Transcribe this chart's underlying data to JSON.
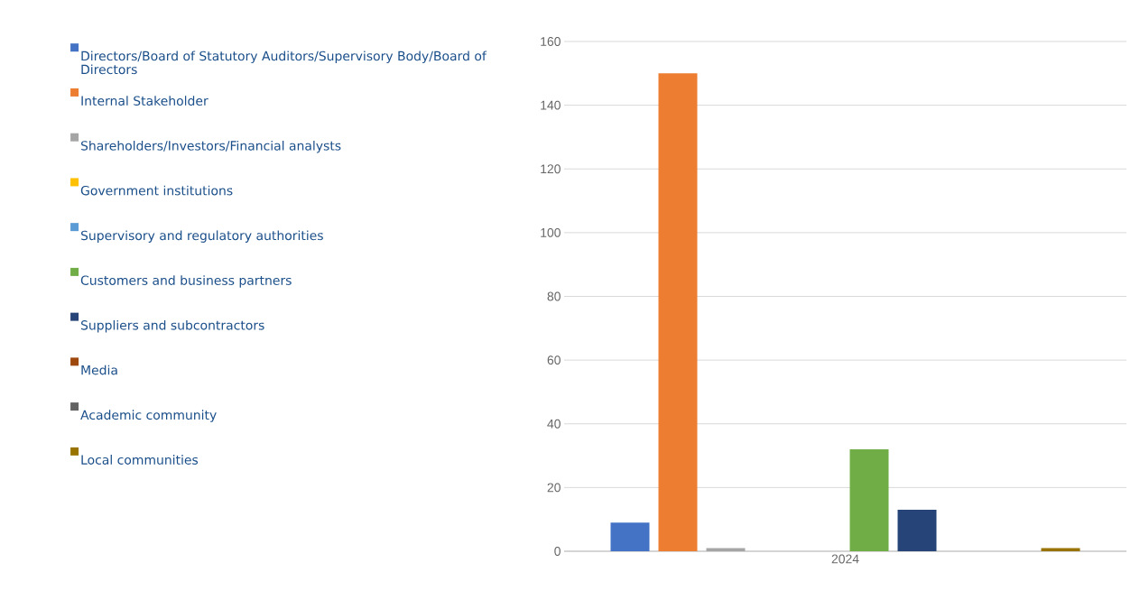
{
  "chart_data": {
    "type": "bar",
    "categories": [
      "2024"
    ],
    "ylim": [
      0,
      160
    ],
    "yticks": [
      0,
      20,
      40,
      60,
      80,
      100,
      120,
      140,
      160
    ],
    "grid": "y",
    "legend": "left",
    "series": [
      {
        "name": "Directors/Board of Statutory Auditors/Supervisory Body/Board of Directors",
        "color": "#4472c4",
        "values": [
          9
        ]
      },
      {
        "name": "Internal Stakeholder",
        "color": "#ed7d31",
        "values": [
          150
        ]
      },
      {
        "name": "Shareholders/Investors/Financial analysts",
        "color": "#a5a5a5",
        "values": [
          1
        ]
      },
      {
        "name": "Government institutions",
        "color": "#ffc000",
        "values": [
          0
        ]
      },
      {
        "name": "Supervisory and regulatory authorities",
        "color": "#5b9bd5",
        "values": [
          0
        ]
      },
      {
        "name": "Customers and business partners",
        "color": "#70ad47",
        "values": [
          32
        ]
      },
      {
        "name": "Suppliers and subcontractors",
        "color": "#264478",
        "values": [
          13
        ]
      },
      {
        "name": "Media",
        "color": "#9e480e",
        "values": [
          0
        ]
      },
      {
        "name": "Academic community",
        "color": "#636363",
        "values": [
          0
        ]
      },
      {
        "name": "Local communities",
        "color": "#997300",
        "values": [
          1
        ]
      }
    ]
  }
}
